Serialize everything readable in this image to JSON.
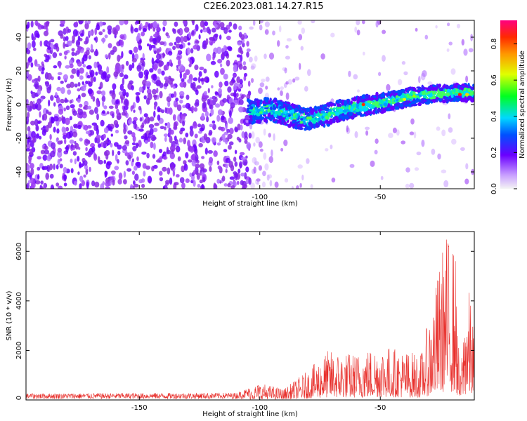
{
  "title": "C2E6.2023.081.14.27.R15",
  "chart_data": [
    {
      "type": "heatmap",
      "xlabel": "Height of straight line (km)",
      "ylabel": "Frequency (Hz)",
      "xlim": [
        -197,
        -11
      ],
      "ylim": [
        -50,
        50
      ],
      "xticks": [
        -150,
        -100,
        -50
      ],
      "yticks": [
        -40,
        -20,
        0,
        20,
        40
      ],
      "ridge": [
        {
          "x": -104,
          "y": -4
        },
        {
          "x": -95,
          "y": -3
        },
        {
          "x": -88,
          "y": -6
        },
        {
          "x": -80,
          "y": -9
        },
        {
          "x": -72,
          "y": -6
        },
        {
          "x": -65,
          "y": -3
        },
        {
          "x": -58,
          "y": -1
        },
        {
          "x": -50,
          "y": 1
        },
        {
          "x": -40,
          "y": 4
        },
        {
          "x": -30,
          "y": 6
        },
        {
          "x": -20,
          "y": 7
        },
        {
          "x": -11,
          "y": 7
        }
      ],
      "colorbar": {
        "label": "Normalized spectral amplitude",
        "range": [
          0,
          0.93
        ],
        "ticks": [
          "0.0",
          "0.2",
          "0.4",
          "0.6",
          "0.8"
        ],
        "tick_values": [
          0,
          0.2,
          0.4,
          0.6,
          0.8
        ]
      }
    },
    {
      "type": "line",
      "xlabel": "Height of straight line (km)",
      "ylabel": "SNR (10 * v/v)",
      "xlim": [
        -197,
        -11
      ],
      "ylim": [
        0,
        6800
      ],
      "xticks": [
        -150,
        -100,
        -50
      ],
      "yticks": [
        0,
        2000,
        4000,
        6000
      ],
      "color": "#e8302c",
      "envelope": [
        {
          "x": -197,
          "y": 250
        },
        {
          "x": -110,
          "y": 280
        },
        {
          "x": -100,
          "y": 700
        },
        {
          "x": -90,
          "y": 450
        },
        {
          "x": -80,
          "y": 1200
        },
        {
          "x": -72,
          "y": 2000
        },
        {
          "x": -60,
          "y": 1900
        },
        {
          "x": -50,
          "y": 2300
        },
        {
          "x": -40,
          "y": 2000
        },
        {
          "x": -33,
          "y": 1900
        },
        {
          "x": -27,
          "y": 4700
        },
        {
          "x": -23,
          "y": 6800
        },
        {
          "x": -19,
          "y": 6300
        },
        {
          "x": -17,
          "y": 800
        },
        {
          "x": -14,
          "y": 5000
        },
        {
          "x": -11,
          "y": 3000
        }
      ]
    }
  ]
}
